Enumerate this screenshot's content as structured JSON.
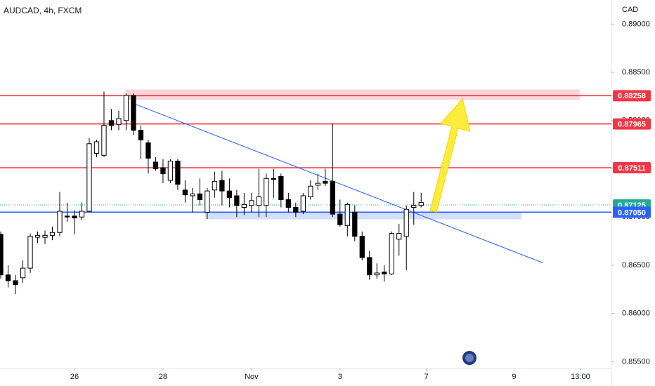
{
  "chart_data": {
    "type": "candlestick",
    "title": "AUDCAD, 4h, FXCM",
    "y_axis_label": "CAD",
    "ylim": [
      0.8543,
      0.8925
    ],
    "yticks": [
      {
        "value": 0.89,
        "label": "0.89000"
      },
      {
        "value": 0.885,
        "label": "0.88500"
      },
      {
        "value": 0.88,
        "label": "0.88000"
      },
      {
        "value": 0.875,
        "label": "0.87500"
      },
      {
        "value": 0.87,
        "label": "0.87000"
      },
      {
        "value": 0.865,
        "label": "0.86500"
      },
      {
        "value": 0.86,
        "label": "0.86000"
      },
      {
        "value": 0.855,
        "label": "0.85500"
      }
    ],
    "xlim": [
      -0.1,
      82.8
    ],
    "xticks": [
      {
        "value": 10,
        "label": "26"
      },
      {
        "value": 22,
        "label": "28"
      },
      {
        "value": 34,
        "label": "Nov"
      },
      {
        "value": 46,
        "label": "3"
      },
      {
        "value": 57.7,
        "label": "7"
      },
      {
        "value": 69.6,
        "label": "9"
      },
      {
        "value": 78.6,
        "label": "13:00"
      }
    ],
    "up_color": "#ffffff",
    "down_color": "#000000",
    "open": [
      0.8682,
      0.864,
      0.8634,
      0.8637,
      0.8647,
      0.8679,
      0.8679,
      0.8681,
      0.8684,
      0.8701,
      0.8701,
      0.87,
      0.8706,
      0.8766,
      0.8764,
      0.88,
      0.8796,
      0.88,
      0.8826,
      0.879,
      0.8777,
      0.8757,
      0.8751,
      0.8738,
      0.8758,
      0.8728,
      0.8722,
      0.8724,
      0.8705,
      0.8728,
      0.8738,
      0.8727,
      0.8722,
      0.871,
      0.8712,
      0.8712,
      0.8712,
      0.874,
      0.8742,
      0.8718,
      0.871,
      0.8706,
      0.8721,
      0.8733,
      0.8737,
      0.8737,
      0.8703,
      0.8691,
      0.8705,
      0.868,
      0.8658,
      0.864,
      0.8643,
      0.8641,
      0.8677,
      0.868,
      0.871,
      0.8712
    ],
    "high": [
      0.8685,
      0.865,
      0.864,
      0.8655,
      0.8683,
      0.8685,
      0.8686,
      0.869,
      0.8726,
      0.8715,
      0.8707,
      0.8715,
      0.8782,
      0.878,
      0.883,
      0.8812,
      0.881,
      0.8828,
      0.8828,
      0.8795,
      0.878,
      0.8762,
      0.876,
      0.876,
      0.876,
      0.8738,
      0.873,
      0.874,
      0.873,
      0.8747,
      0.8748,
      0.874,
      0.8728,
      0.8725,
      0.8725,
      0.875,
      0.8745,
      0.875,
      0.8745,
      0.8725,
      0.8715,
      0.8725,
      0.8738,
      0.8745,
      0.875,
      0.8797,
      0.8718,
      0.8715,
      0.8712,
      0.8685,
      0.8665,
      0.8652,
      0.865,
      0.8685,
      0.8693,
      0.8712,
      0.8726,
      0.8725
    ],
    "low": [
      0.8636,
      0.8627,
      0.862,
      0.8632,
      0.8642,
      0.8673,
      0.8672,
      0.8676,
      0.868,
      0.8695,
      0.8682,
      0.8697,
      0.8705,
      0.8762,
      0.8762,
      0.879,
      0.879,
      0.879,
      0.8785,
      0.876,
      0.8745,
      0.8748,
      0.8735,
      0.8735,
      0.8728,
      0.8715,
      0.8705,
      0.8712,
      0.8698,
      0.872,
      0.8712,
      0.871,
      0.87,
      0.8702,
      0.8705,
      0.87,
      0.87,
      0.872,
      0.871,
      0.8705,
      0.87,
      0.8703,
      0.8718,
      0.8728,
      0.8732,
      0.87,
      0.869,
      0.868,
      0.8675,
      0.8655,
      0.8635,
      0.8636,
      0.8633,
      0.864,
      0.866,
      0.8645,
      0.8692,
      0.871
    ],
    "close": [
      0.864,
      0.8634,
      0.863,
      0.8647,
      0.868,
      0.8681,
      0.8681,
      0.8684,
      0.8706,
      0.87,
      0.8699,
      0.8706,
      0.8776,
      0.8778,
      0.8795,
      0.8795,
      0.8802,
      0.8826,
      0.879,
      0.878,
      0.8761,
      0.875,
      0.8745,
      0.8758,
      0.8734,
      0.8723,
      0.8724,
      0.8718,
      0.8727,
      0.8737,
      0.8727,
      0.872,
      0.8712,
      0.8713,
      0.8717,
      0.8721,
      0.874,
      0.8739,
      0.8718,
      0.871,
      0.8705,
      0.8722,
      0.8732,
      0.8735,
      0.8735,
      0.8703,
      0.8692,
      0.8713,
      0.868,
      0.8658,
      0.864,
      0.8642,
      0.8641,
      0.8683,
      0.8683,
      0.8708,
      0.8712,
      0.8715
    ],
    "levels": [
      {
        "value": 0.88258,
        "label": "0.88258",
        "color": "#f23645",
        "dashed": false
      },
      {
        "value": 0.87965,
        "label": "0.87965",
        "color": "#f23645",
        "dashed": false
      },
      {
        "value": 0.87511,
        "label": "0.87511",
        "color": "#f23645",
        "dashed": false
      },
      {
        "value": 0.87125,
        "label": "0.87125",
        "color": "#22ab94",
        "dashed": true
      },
      {
        "value": 0.8705,
        "label": "0.87050",
        "color": "#2962ff",
        "dashed": false
      }
    ],
    "zones": [
      {
        "x": [
          16.9,
          78.5
        ],
        "y": [
          0.88214,
          0.88323
        ],
        "color": "#f8d7da"
      },
      {
        "x": [
          27.7,
          70.6
        ],
        "y": [
          0.86976,
          0.87056
        ],
        "color": "#d3def7"
      }
    ],
    "trendline": {
      "x": [
        18.0,
        73.5
      ],
      "y": [
        0.88177,
        0.86525
      ],
      "color": "#2962ff"
    }
  }
}
